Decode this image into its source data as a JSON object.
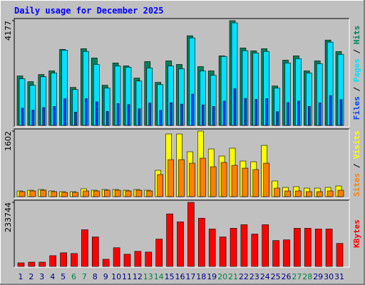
{
  "legend_separator": " / ",
  "chart_data": [
    {
      "type": "bar",
      "title": "Daily usage for December 2025",
      "ylim": [
        0,
        4177
      ],
      "yticks": [
        4177
      ],
      "series": [
        {
          "name": "Hits",
          "color": "#00805C",
          "values": [
            1974,
            1745,
            2031,
            2174,
            3032,
            1516,
            3061,
            2689,
            1602,
            2489,
            2374,
            1888,
            2546,
            1716,
            2574,
            2432,
            3576,
            2346,
            2174,
            2775,
            4177,
            3090,
            2975,
            3061,
            1573,
            2603,
            2775,
            2174,
            2574,
            3404,
            2946
          ]
        },
        {
          "name": "Pages",
          "color": "#00E0FF",
          "values": [
            1860,
            1600,
            1940,
            2090,
            3000,
            1430,
            2950,
            2430,
            1490,
            2370,
            2320,
            1770,
            2290,
            1630,
            2370,
            2260,
            3490,
            2170,
            2000,
            2750,
            4090,
            2980,
            2890,
            2950,
            1490,
            2490,
            2660,
            2090,
            2460,
            3320,
            2830
          ]
        },
        {
          "name": "Files",
          "color": "#0040FF",
          "values": [
            690,
            610,
            710,
            760,
            1060,
            530,
            1070,
            940,
            560,
            870,
            830,
            660,
            890,
            600,
            900,
            850,
            1250,
            820,
            760,
            970,
            1460,
            1080,
            1040,
            1070,
            550,
            910,
            970,
            760,
            900,
            1190,
            1030
          ]
        }
      ]
    },
    {
      "type": "bar",
      "ylim": [
        0,
        1602
      ],
      "yticks": [
        1602
      ],
      "series": [
        {
          "name": "Visits",
          "color": "#FFFF00",
          "values": [
            139,
            157,
            174,
            139,
            122,
            122,
            192,
            157,
            174,
            174,
            157,
            174,
            157,
            644,
            1532,
            1532,
            1097,
            1602,
            1166,
            992,
            1184,
            870,
            853,
            1253,
            383,
            226,
            244,
            209,
            209,
            226,
            261
          ]
        },
        {
          "name": "Sites",
          "color": "#FF8000",
          "values": [
            122,
            139,
            157,
            122,
            104,
            104,
            139,
            139,
            157,
            157,
            139,
            157,
            139,
            540,
            905,
            905,
            818,
            940,
            731,
            836,
            766,
            696,
            662,
            818,
            209,
            139,
            139,
            122,
            122,
            139,
            157
          ]
        }
      ]
    },
    {
      "type": "bar",
      "ylim": [
        0,
        233744
      ],
      "yticks": [
        233744
      ],
      "categories": [
        "1",
        "2",
        "3",
        "4",
        "5",
        "6",
        "7",
        "8",
        "9",
        "10",
        "11",
        "12",
        "13",
        "14",
        "15",
        "16",
        "17",
        "18",
        "19",
        "20",
        "21",
        "22",
        "23",
        "24",
        "25",
        "26",
        "27",
        "28",
        "29",
        "30",
        "31"
      ],
      "category_colors": [
        "#000080",
        "#000080",
        "#000080",
        "#000080",
        "#000080",
        "#008040",
        "#008040",
        "#000080",
        "#000080",
        "#000080",
        "#000080",
        "#000080",
        "#008040",
        "#008040",
        "#000080",
        "#000080",
        "#000080",
        "#000080",
        "#000080",
        "#008040",
        "#008040",
        "#000080",
        "#000080",
        "#000080",
        "#000080",
        "#000080",
        "#008040",
        "#008040",
        "#000080",
        "#000080",
        "#000080"
      ],
      "series": [
        {
          "name": "KBytes",
          "color": "#FF0000",
          "values": [
            13131,
            15757,
            15757,
            39390,
            49893,
            47267,
            133927,
            107665,
            26262,
            68280,
            44641,
            55145,
            52519,
            99787,
            191700,
            162811,
            233744,
            175942,
            136552,
            107665,
            139178,
            152306,
            118170,
            152306,
            94535,
            97161,
            139178,
            139178,
            136552,
            136552,
            84031
          ]
        }
      ]
    }
  ]
}
